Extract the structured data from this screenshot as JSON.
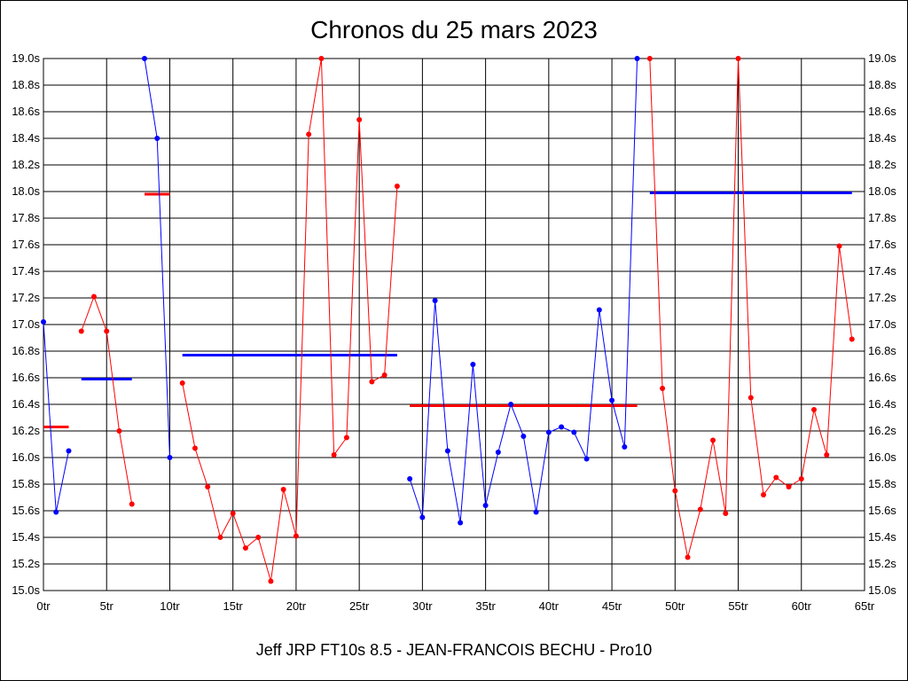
{
  "chart_data": {
    "type": "line",
    "title": "Chronos du 25 mars 2023",
    "footer": "Jeff JRP FT10s 8.5 - JEAN-FRANCOIS BECHU - Pro10",
    "xlabel": "",
    "ylabel": "",
    "xlim": [
      0,
      65
    ],
    "ylim": [
      15.0,
      19.0
    ],
    "x_ticks": [
      0,
      5,
      10,
      15,
      20,
      25,
      30,
      35,
      40,
      45,
      50,
      55,
      60,
      65
    ],
    "x_tick_suffix": "tr",
    "y_ticks": [
      15.0,
      15.2,
      15.4,
      15.6,
      15.8,
      16.0,
      16.2,
      16.4,
      16.6,
      16.8,
      17.0,
      17.2,
      17.4,
      17.6,
      17.8,
      18.0,
      18.2,
      18.4,
      18.6,
      18.8,
      19.0
    ],
    "y_tick_suffix": "s",
    "grid": true,
    "y_axis_both_sides": true,
    "colors": {
      "red": "#ff0000",
      "blue": "#0000ff",
      "grid": "#000000"
    },
    "series": [
      {
        "color": "#0000ff",
        "x": [
          0,
          1,
          2
        ],
        "y": [
          17.02,
          15.59,
          16.05
        ]
      },
      {
        "color": "#ff0000",
        "x": [
          3,
          4,
          5,
          6,
          7
        ],
        "y": [
          16.95,
          17.21,
          16.95,
          16.2,
          15.65
        ]
      },
      {
        "color": "#0000ff",
        "x": [
          8,
          9,
          10
        ],
        "y": [
          19.0,
          18.4,
          16.0
        ]
      },
      {
        "color": "#ff0000",
        "x": [
          11,
          12,
          13,
          14,
          15,
          16,
          17,
          18,
          19,
          20,
          21,
          22,
          23,
          24,
          25,
          26,
          27,
          28
        ],
        "y": [
          16.56,
          16.07,
          15.78,
          15.4,
          15.58,
          15.32,
          15.4,
          15.07,
          15.76,
          15.41,
          18.43,
          19.0,
          16.02,
          16.15,
          18.54,
          16.57,
          16.62,
          18.04
        ]
      },
      {
        "color": "#0000ff",
        "x": [
          29,
          30,
          31,
          32,
          33,
          34,
          35,
          36,
          37,
          38,
          39,
          40,
          41,
          42,
          43,
          44,
          45,
          46,
          47
        ],
        "y": [
          15.84,
          15.55,
          17.18,
          16.05,
          15.51,
          16.7,
          15.64,
          16.04,
          16.4,
          16.16,
          15.59,
          16.19,
          16.23,
          16.19,
          15.99,
          17.11,
          16.43,
          16.08,
          19.0
        ]
      },
      {
        "color": "#ff0000",
        "x": [
          48,
          49,
          50,
          51,
          52,
          53,
          54,
          55,
          56,
          57,
          58,
          59,
          60,
          61,
          62,
          63,
          64
        ],
        "y": [
          19.0,
          16.52,
          15.75,
          15.25,
          15.61,
          16.13,
          15.58,
          19.0,
          16.45,
          15.72,
          15.85,
          15.78,
          15.84,
          16.36,
          16.02,
          17.59,
          16.89
        ]
      }
    ],
    "averages": [
      {
        "color": "#ff0000",
        "x_start": 0,
        "x_end": 2,
        "value": 16.23
      },
      {
        "color": "#0000ff",
        "x_start": 3,
        "x_end": 7,
        "value": 16.59
      },
      {
        "color": "#ff0000",
        "x_start": 8,
        "x_end": 10,
        "value": 17.98
      },
      {
        "color": "#0000ff",
        "x_start": 11,
        "x_end": 28,
        "value": 16.77
      },
      {
        "color": "#ff0000",
        "x_start": 29,
        "x_end": 47,
        "value": 16.39
      },
      {
        "color": "#0000ff",
        "x_start": 48,
        "x_end": 64,
        "value": 17.99
      }
    ]
  }
}
